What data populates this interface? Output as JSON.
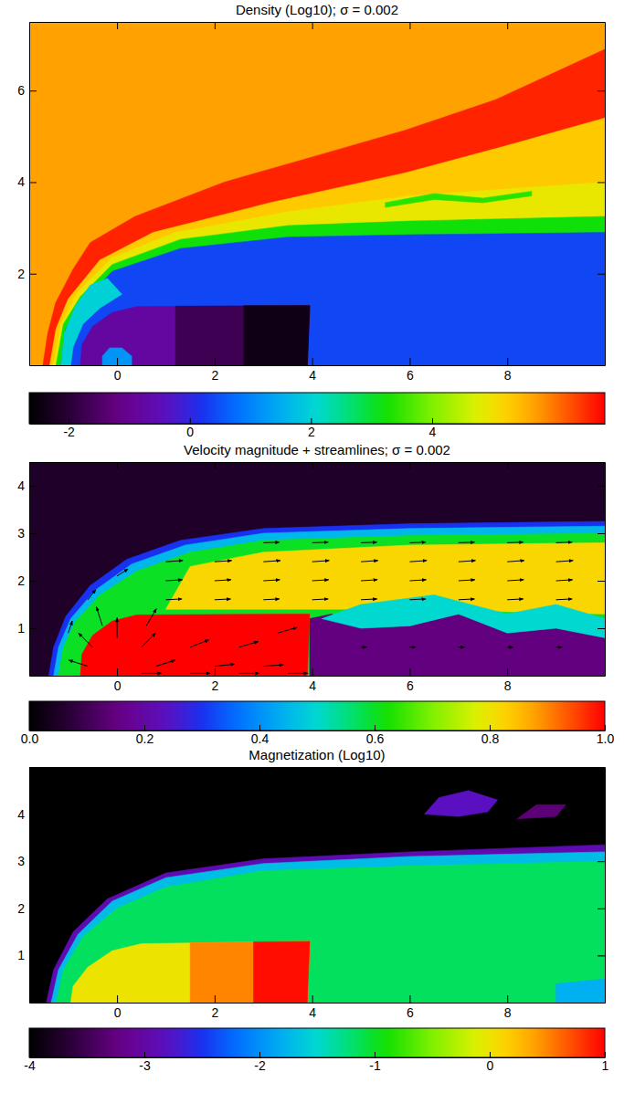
{
  "chart_data": [
    {
      "type": "map",
      "title": "Density (Log10); σ = 0.002",
      "xlim": [
        -1.8,
        10
      ],
      "xticks": [
        0,
        2,
        4,
        6,
        8
      ],
      "ylim": [
        0,
        7.5
      ],
      "yticks": [
        2,
        4,
        6
      ],
      "colorbar": {
        "range": [
          -2.65,
          6.85
        ],
        "ticks": [
          -2,
          0,
          2,
          4
        ]
      },
      "regions": [
        {
          "x": [
            -1.8,
            -1.8,
            10,
            10
          ],
          "y": [
            0,
            7.5,
            7.5,
            0
          ],
          "value": 5.7
        },
        {
          "x": [
            -1.52,
            -1.42,
            -1.26,
            -0.9,
            -0.55,
            0.37,
            2.2,
            4.07,
            5.9,
            7.76,
            10,
            10
          ],
          "y": [
            0,
            0.7,
            1.36,
            2.1,
            2.68,
            3.25,
            4.0,
            4.57,
            5.13,
            5.8,
            6.9,
            0
          ],
          "value": 6.6
        },
        {
          "x": [
            -1.38,
            -1.25,
            -1.0,
            -0.35,
            0.74,
            3.14,
            5.9,
            8,
            10,
            10
          ],
          "y": [
            0,
            0.8,
            1.45,
            2.3,
            2.9,
            3.55,
            4.2,
            4.8,
            5.4,
            0
          ],
          "value": 5.3
        },
        {
          "x": [
            -1.3,
            -1.15,
            -0.8,
            -0.1,
            1.2,
            3.5,
            6,
            10,
            10
          ],
          "y": [
            0,
            0.9,
            1.6,
            2.35,
            2.9,
            3.35,
            3.7,
            4.0,
            0
          ],
          "value": 4.9
        },
        {
          "x": [
            -1.25,
            -1.1,
            -0.75,
            -0.1,
            1.3,
            3.5,
            6,
            10,
            10
          ],
          "y": [
            0,
            0.9,
            1.5,
            2.2,
            2.75,
            3.05,
            3.15,
            3.25,
            0
          ],
          "value": 3.2
        },
        {
          "x": [
            -1.15,
            -1.05,
            -0.7,
            -0.1,
            1.3,
            3.5,
            6,
            10,
            10
          ],
          "y": [
            0,
            0.8,
            1.4,
            2.05,
            2.55,
            2.8,
            2.85,
            2.9,
            0
          ],
          "value": 0.4
        },
        {
          "x": [
            -1.15,
            -1.08,
            -0.85,
            -0.55,
            -0.2,
            0.1,
            -0.35,
            -0.7,
            -0.9,
            -0.95
          ],
          "y": [
            0,
            0.7,
            1.3,
            1.75,
            1.9,
            1.55,
            1.25,
            0.9,
            0.4,
            0
          ],
          "value": 2.0
        },
        {
          "x": [
            -0.75,
            -0.72,
            -0.5,
            -0.1,
            0.4,
            3.95,
            3.9
          ],
          "y": [
            0,
            0.45,
            0.85,
            1.15,
            1.28,
            1.3,
            0
          ],
          "value": -0.8
        },
        {
          "x": [
            1.2,
            1.2,
            3.95,
            3.9
          ],
          "y": [
            0,
            1.29,
            1.3,
            0
          ],
          "value": -1.7
        },
        {
          "x": [
            2.6,
            2.6,
            3.95,
            3.9
          ],
          "y": [
            0,
            1.3,
            1.3,
            0
          ],
          "value": -2.4
        },
        {
          "x": [
            -0.3,
            -0.3,
            -0.15,
            0.1,
            0.3,
            0.3
          ],
          "y": [
            0,
            0.2,
            0.38,
            0.38,
            0.2,
            0
          ],
          "value": 1.2
        },
        {
          "x": [
            5.5,
            6.5,
            7.5,
            8.5,
            8.5,
            7.5,
            6.5,
            5.5
          ],
          "y": [
            3.55,
            3.75,
            3.65,
            3.8,
            3.7,
            3.55,
            3.62,
            3.45
          ],
          "value": 3.4
        }
      ]
    },
    {
      "type": "map",
      "title": "Velocity magnitude + streamlines; σ = 0.002",
      "xlim": [
        -1.8,
        10
      ],
      "xticks": [
        0,
        2,
        4,
        6,
        8
      ],
      "ylim": [
        0,
        4.5
      ],
      "yticks": [
        1,
        2,
        3,
        4
      ],
      "colorbar": {
        "range": [
          0,
          1
        ],
        "ticks": [
          {
            "value": 0,
            "label": "0.0"
          },
          {
            "value": 0.2,
            "label": "0.2"
          },
          {
            "value": 0.4,
            "label": "0.4"
          },
          {
            "value": 0.6,
            "label": "0.6"
          },
          {
            "value": 0.8,
            "label": "0.8"
          },
          {
            "value": 1,
            "label": "1.0"
          }
        ]
      },
      "regions": [
        {
          "x": [
            -1.8,
            -1.8,
            10,
            10
          ],
          "y": [
            0,
            4.5,
            4.5,
            0
          ],
          "value": 0.05
        },
        {
          "x": [
            -1.4,
            -1.3,
            -1.05,
            -0.55,
            0.2,
            1.3,
            3,
            6,
            10,
            10
          ],
          "y": [
            0,
            0.6,
            1.25,
            1.9,
            2.45,
            2.85,
            3.1,
            3.2,
            3.25,
            0
          ],
          "value": 0.3
        },
        {
          "x": [
            -1.3,
            -1.2,
            -0.95,
            -0.45,
            0.3,
            1.4,
            3,
            6,
            10,
            10
          ],
          "y": [
            0,
            0.6,
            1.2,
            1.8,
            2.35,
            2.75,
            3.0,
            3.1,
            3.15,
            0
          ],
          "value": 0.45
        },
        {
          "x": [
            -1.2,
            -1.1,
            -0.85,
            -0.35,
            0.4,
            1.5,
            3,
            6,
            10,
            10
          ],
          "y": [
            0,
            0.6,
            1.15,
            1.7,
            2.2,
            2.6,
            2.85,
            2.95,
            3.0,
            0
          ],
          "value": 0.6
        },
        {
          "x": [
            1,
            1.5,
            3,
            6,
            10,
            10,
            6,
            4
          ],
          "y": [
            1.4,
            2.3,
            2.6,
            2.75,
            2.8,
            1.3,
            1.4,
            1.4
          ],
          "value": 0.82
        },
        {
          "x": [
            3.95,
            3.95,
            4.4,
            5,
            6,
            7,
            8,
            9,
            10,
            10
          ],
          "y": [
            0,
            1.2,
            1.3,
            1.0,
            1.05,
            1.3,
            0.9,
            1.0,
            0.8,
            0
          ],
          "value": 0.15
        },
        {
          "x": [
            4.2,
            5,
            6.5,
            8,
            9,
            10,
            10,
            9,
            8,
            7,
            6,
            5
          ],
          "y": [
            1.2,
            1.5,
            1.7,
            1.3,
            1.5,
            1.2,
            0.8,
            1.0,
            0.9,
            1.3,
            1.05,
            1.0
          ],
          "value": 0.5
        },
        {
          "x": [
            -0.75,
            -0.72,
            -0.5,
            -0.1,
            0.4,
            3.95,
            3.9
          ],
          "y": [
            0,
            0.45,
            0.85,
            1.15,
            1.28,
            1.3,
            0
          ],
          "value": 1.0
        }
      ],
      "vectors": {
        "x": [
          -0.6,
          -0.5,
          0,
          0.5,
          0.8,
          1.5,
          2.5,
          3.3,
          2,
          3,
          -0.3,
          0.6,
          -1,
          -0.6,
          0,
          1,
          2,
          3,
          4,
          5,
          6,
          7,
          8,
          9,
          1,
          2,
          3,
          4,
          5,
          6,
          7,
          8,
          9,
          1,
          2,
          3,
          4,
          5,
          6,
          7,
          8,
          9,
          3,
          4,
          5,
          6,
          7,
          8,
          9,
          5,
          6,
          7,
          8,
          9,
          0.5,
          1.5,
          2.5,
          3.5
        ],
        "y": [
          0.2,
          0.6,
          0.8,
          0.6,
          0.2,
          0.6,
          0.6,
          0.9,
          0.2,
          0.2,
          1.05,
          1.05,
          0.9,
          1.6,
          2.1,
          1.6,
          1.6,
          1.6,
          1.6,
          1.6,
          1.6,
          1.6,
          1.6,
          1.6,
          2.0,
          2.0,
          2.0,
          2.0,
          2.0,
          2.0,
          2.0,
          2.0,
          2.0,
          2.4,
          2.4,
          2.4,
          2.4,
          2.4,
          2.4,
          2.4,
          2.4,
          2.4,
          2.8,
          2.8,
          2.8,
          2.8,
          2.8,
          2.8,
          2.8,
          0.6,
          0.6,
          0.6,
          0.6,
          0.6,
          0.05,
          0.05,
          0.05,
          0.05
        ],
        "u": [
          -0.95,
          -0.7,
          0,
          0.7,
          0.95,
          0.93,
          0.96,
          0.96,
          1,
          1,
          -0.3,
          0.5,
          0.2,
          0.4,
          0.55,
          0.8,
          0.8,
          0.8,
          0.8,
          0.8,
          0.8,
          0.8,
          0.8,
          0.8,
          0.82,
          0.82,
          0.82,
          0.82,
          0.82,
          0.82,
          0.82,
          0.82,
          0.82,
          0.85,
          0.85,
          0.85,
          0.85,
          0.85,
          0.85,
          0.85,
          0.85,
          0.85,
          0.8,
          0.8,
          0.8,
          0.8,
          0.8,
          0.8,
          0.8,
          0.3,
          0.3,
          0.3,
          0.3,
          0.3,
          1,
          1,
          1,
          1
        ],
        "v": [
          0.3,
          0.7,
          1,
          0.7,
          0.3,
          0.37,
          0.28,
          0.28,
          0.1,
          0.07,
          0.95,
          0.85,
          0.6,
          0.5,
          0.35,
          0.04,
          0.04,
          0.04,
          0.04,
          0.04,
          0.04,
          0.04,
          0.04,
          0.04,
          0.05,
          0.05,
          0.05,
          0.05,
          0.05,
          0.05,
          0.05,
          0.05,
          0.05,
          0.06,
          0.06,
          0.06,
          0.06,
          0.06,
          0.06,
          0.06,
          0.06,
          0.06,
          0.03,
          0.03,
          0.03,
          0.03,
          0.03,
          0.03,
          0.03,
          0,
          0,
          0,
          0,
          0,
          0,
          0,
          0,
          0
        ]
      }
    },
    {
      "type": "map",
      "title": "Magnetization (Log10)",
      "xlim": [
        -1.8,
        10
      ],
      "xticks": [
        0,
        2,
        4,
        6,
        8
      ],
      "ylim": [
        0,
        5
      ],
      "yticks": [
        1,
        2,
        3,
        4
      ],
      "colorbar": {
        "range": [
          -4,
          1
        ],
        "ticks": [
          -4,
          -3,
          -2,
          -1,
          0,
          1
        ]
      },
      "regions": [
        {
          "x": [
            -1.8,
            -1.8,
            10,
            10
          ],
          "y": [
            0,
            5,
            5,
            0
          ],
          "value": -4
        },
        {
          "x": [
            -1.45,
            -1.3,
            -0.9,
            -0.2,
            1,
            3,
            6,
            10,
            10
          ],
          "y": [
            0,
            0.7,
            1.5,
            2.2,
            2.75,
            3.05,
            3.2,
            3.35,
            0
          ],
          "value": -2.9
        },
        {
          "x": [
            -1.35,
            -1.2,
            -0.8,
            -0.1,
            1,
            3,
            6,
            10,
            10
          ],
          "y": [
            0,
            0.7,
            1.45,
            2.15,
            2.65,
            2.95,
            3.1,
            3.2,
            0
          ],
          "value": -1.7
        },
        {
          "x": [
            -1.25,
            -1.1,
            -0.7,
            0,
            1,
            3,
            6,
            10,
            10
          ],
          "y": [
            0,
            0.7,
            1.4,
            2.0,
            2.45,
            2.8,
            2.9,
            3.0,
            0
          ],
          "value": -1.15
        },
        {
          "x": [
            -0.95,
            -0.9,
            -0.6,
            -0.1,
            0.5,
            3.95,
            3.9
          ],
          "y": [
            0,
            0.35,
            0.75,
            1.1,
            1.25,
            1.3,
            0
          ],
          "value": 0.0
        },
        {
          "x": [
            1.5,
            1.5,
            3.95,
            3.9
          ],
          "y": [
            0,
            1.27,
            1.3,
            0
          ],
          "value": 0.5
        },
        {
          "x": [
            2.8,
            2.8,
            3.95,
            3.9
          ],
          "y": [
            0,
            1.29,
            1.3,
            0
          ],
          "value": 0.95
        },
        {
          "x": [
            6.3,
            6.6,
            7.2,
            7.8,
            7.6,
            7.0
          ],
          "y": [
            4.0,
            4.35,
            4.5,
            4.3,
            4.05,
            3.95
          ],
          "value": -2.8
        },
        {
          "x": [
            9,
            9,
            10,
            10
          ],
          "y": [
            0,
            0.4,
            0.5,
            0
          ],
          "value": -1.8
        },
        {
          "x": [
            8.2,
            8.6,
            9.2,
            9.0
          ],
          "y": [
            3.9,
            4.2,
            4.2,
            3.95
          ],
          "value": -3.3
        }
      ]
    }
  ]
}
